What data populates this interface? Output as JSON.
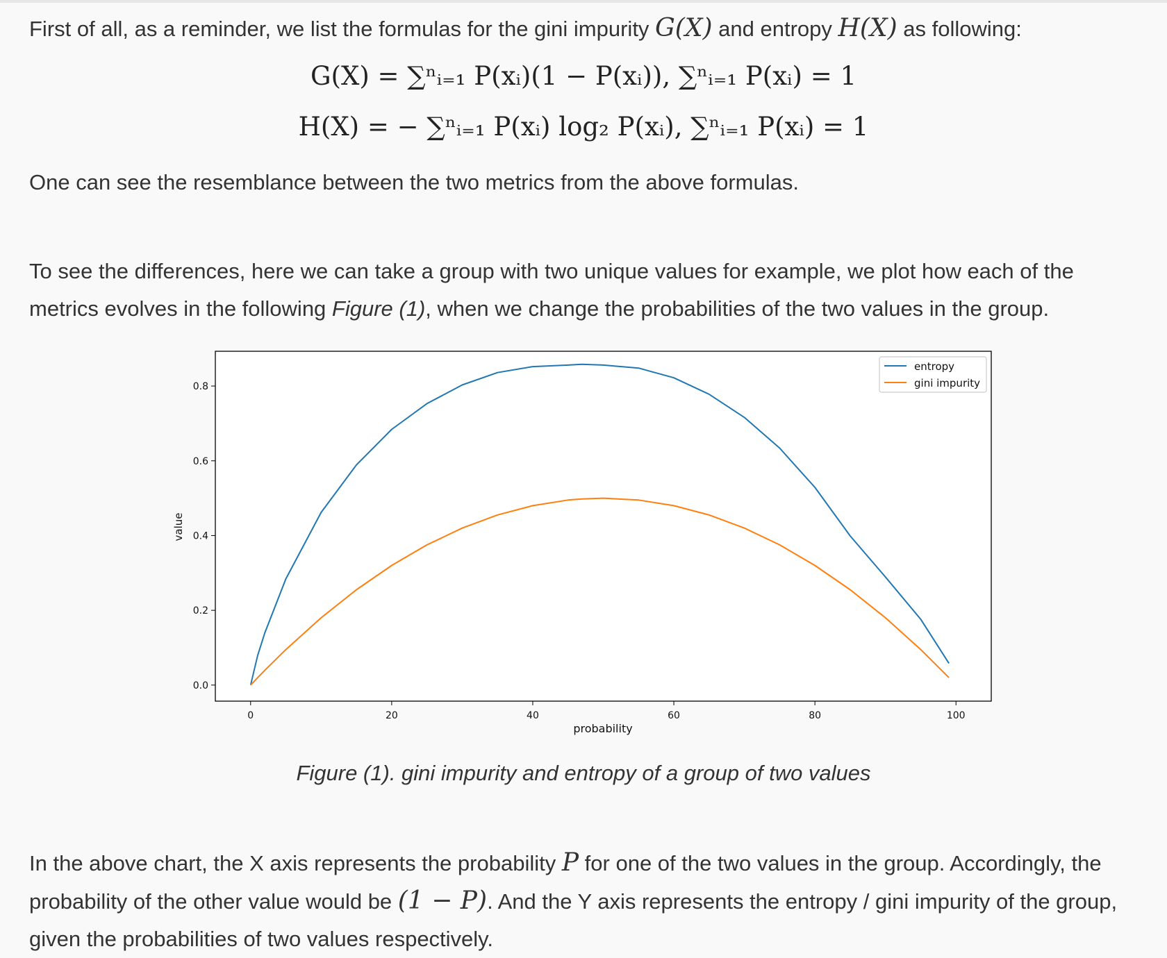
{
  "paragraphs": {
    "p1_before": "First of all, as a reminder, we list the formulas for the gini impurity ",
    "p1_math1": "G(X)",
    "p1_middle": " and entropy ",
    "p1_math2": "H(X)",
    "p1_after": " as following:",
    "p2": "One can see the resemblance between the two metrics from the above formulas.",
    "p3_before": "To see the differences, here we can take a group with two unique values for example, we plot how each of the metrics evolves in the following ",
    "p3_em": "Figure (1)",
    "p3_after": ", when we change the probabilities of the two values in the group.",
    "p4_a": "In the above chart, the X axis represents the probability ",
    "p4_math1": "P",
    "p4_b": " for one of the two values in the group. Accordingly, the probability of the other value would be ",
    "p4_math2": "(1 − P)",
    "p4_c": ". And the Y axis represents the entropy / gini impurity of the group, given the probabilities of two values respectively."
  },
  "formulas": {
    "gini": "G(X) = ∑ⁿᵢ₌₁ P(xᵢ)(1 − P(xᵢ)),   ∑ⁿᵢ₌₁ P(xᵢ) = 1",
    "entropy": "H(X) = − ∑ⁿᵢ₌₁ P(xᵢ) log₂ P(xᵢ),   ∑ⁿᵢ₌₁ P(xᵢ) = 1"
  },
  "caption": "Figure (1). gini impurity and entropy of a group of two values",
  "chart_data": {
    "type": "line",
    "title": "",
    "xlabel": "probability",
    "ylabel": "value",
    "xlim": [
      -5,
      105
    ],
    "ylim": [
      -0.043,
      0.893
    ],
    "xticks": [
      0,
      20,
      40,
      60,
      80,
      100
    ],
    "xtick_labels": [
      "0",
      "20",
      "40",
      "60",
      "80",
      "100"
    ],
    "yticks": [
      0.0,
      0.2,
      0.4,
      0.6,
      0.8
    ],
    "ytick_labels": [
      "0.0",
      "0.2",
      "0.4",
      "0.6",
      "0.8"
    ],
    "grid": false,
    "legend_position": "top-right",
    "x": [
      0,
      1,
      2,
      5,
      10,
      15,
      20,
      25,
      30,
      35,
      40,
      45,
      47,
      50,
      55,
      60,
      65,
      70,
      75,
      80,
      85,
      90,
      95,
      99
    ],
    "series": [
      {
        "name": "entropy",
        "color": "#1f77b4",
        "values": [
          0.0,
          0.079,
          0.139,
          0.284,
          0.462,
          0.589,
          0.684,
          0.753,
          0.803,
          0.836,
          0.852,
          0.856,
          0.858,
          0.856,
          0.848,
          0.822,
          0.778,
          0.716,
          0.634,
          0.529,
          0.399,
          0.289,
          0.176,
          0.058
        ]
      },
      {
        "name": "gini impurity",
        "color": "#ff7f0e",
        "values": [
          0.0,
          0.0198,
          0.0392,
          0.095,
          0.18,
          0.255,
          0.32,
          0.375,
          0.42,
          0.455,
          0.48,
          0.495,
          0.498,
          0.5,
          0.495,
          0.48,
          0.455,
          0.42,
          0.375,
          0.32,
          0.255,
          0.18,
          0.095,
          0.0198
        ]
      }
    ]
  }
}
